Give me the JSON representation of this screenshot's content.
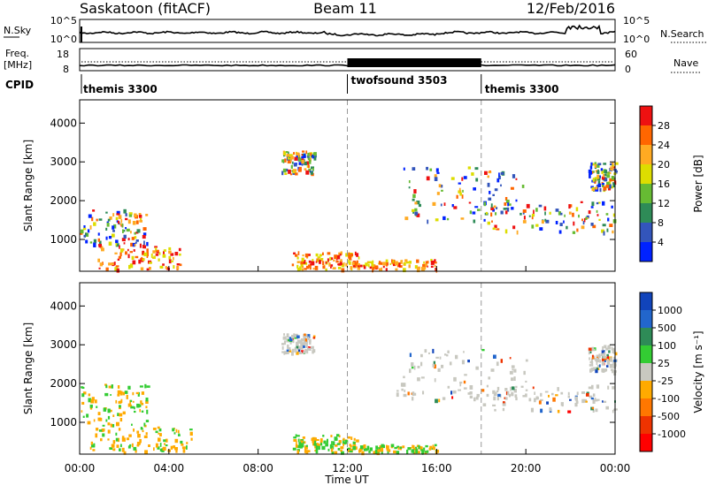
{
  "header": {
    "radar": "Saskatoon (fitACF)",
    "beam": "Beam 11",
    "date": "12/Feb/2016"
  },
  "top_panels": {
    "nsky_label": "N.Sky",
    "nsky_ticks": [
      "10^5",
      "10^0"
    ],
    "nsearch_label": "N.Search",
    "nsearch_ticks": [
      "10^5",
      "10^0"
    ],
    "freq_label": "Freq.",
    "freq_unit": "[MHz]",
    "freq_ticks": [
      "18",
      "8"
    ],
    "nave_label": "Nave",
    "nave_ticks": [
      "60",
      "0"
    ],
    "cpid_label": "CPID",
    "cpid_segments": [
      {
        "label": "themis 3300",
        "start_hour": 0,
        "end_hour": 12
      },
      {
        "label": "twofsound 3503",
        "start_hour": 12,
        "end_hour": 18
      },
      {
        "label": "themis 3300",
        "start_hour": 18,
        "end_hour": 24
      }
    ]
  },
  "chart_data": [
    {
      "type": "heatmap",
      "name": "power",
      "ylabel": "Slant Range [km]",
      "y_ticks": [
        1000,
        2000,
        3000,
        4000
      ],
      "ylim": [
        180,
        4600
      ],
      "xlim": [
        0,
        24
      ],
      "colorbar_label": "Power [dB]",
      "colorbar_ticks": [
        "4",
        "8",
        "12",
        "16",
        "20",
        "24",
        "28"
      ],
      "colors": [
        "#0022ff",
        "#3355bb",
        "#2e8b57",
        "#66bb33",
        "#dddd00",
        "#ffaa22",
        "#ff6600",
        "#ee1111"
      ],
      "echo_regions": [
        {
          "x": [
            0.0,
            3.0
          ],
          "y": [
            900,
            1800
          ]
        },
        {
          "x": [
            0.8,
            4.5
          ],
          "y": [
            250,
            900
          ]
        },
        {
          "x": [
            9.0,
            10.5
          ],
          "y": [
            2700,
            3300
          ]
        },
        {
          "x": [
            9.5,
            12.5
          ],
          "y": [
            250,
            700
          ]
        },
        {
          "x": [
            12.0,
            16.0
          ],
          "y": [
            250,
            500
          ]
        },
        {
          "x": [
            14.5,
            20.0
          ],
          "y": [
            1500,
            2900
          ]
        },
        {
          "x": [
            18.0,
            24.0
          ],
          "y": [
            1200,
            2000
          ]
        },
        {
          "x": [
            22.8,
            24.0
          ],
          "y": [
            2300,
            3000
          ]
        }
      ]
    },
    {
      "type": "heatmap",
      "name": "velocity",
      "ylabel": "Slant Range [km]",
      "xlabel": "Time UT",
      "y_ticks": [
        1000,
        2000,
        3000,
        4000
      ],
      "ylim": [
        180,
        4600
      ],
      "xlim": [
        0,
        24
      ],
      "x_ticks": [
        "00:00",
        "04:00",
        "08:00",
        "12:00",
        "16:00",
        "20:00",
        "00:00"
      ],
      "colorbar_label": "Velocity [m s⁻¹]",
      "colorbar_ticks": [
        "1000",
        "500",
        "100",
        "25",
        "-25",
        "-100",
        "-500",
        "-1000"
      ],
      "colors": [
        "#1144bb",
        "#2266cc",
        "#2e8b57",
        "#33cc33",
        "#c8c8c0",
        "#ffaa00",
        "#ff7700",
        "#ee3300",
        "#ff0000"
      ],
      "echo_regions": [
        {
          "x": [
            0.0,
            3.0
          ],
          "y": [
            900,
            2000
          ]
        },
        {
          "x": [
            0.3,
            5.0
          ],
          "y": [
            250,
            900
          ]
        },
        {
          "x": [
            9.0,
            10.5
          ],
          "y": [
            2800,
            3300
          ]
        },
        {
          "x": [
            9.5,
            12.5
          ],
          "y": [
            250,
            700
          ]
        },
        {
          "x": [
            12.0,
            16.0
          ],
          "y": [
            250,
            450
          ]
        },
        {
          "x": [
            14.0,
            20.0
          ],
          "y": [
            1600,
            2900
          ]
        },
        {
          "x": [
            18.0,
            24.0
          ],
          "y": [
            1300,
            2000
          ]
        },
        {
          "x": [
            22.8,
            24.0
          ],
          "y": [
            2300,
            3000
          ]
        }
      ]
    }
  ]
}
